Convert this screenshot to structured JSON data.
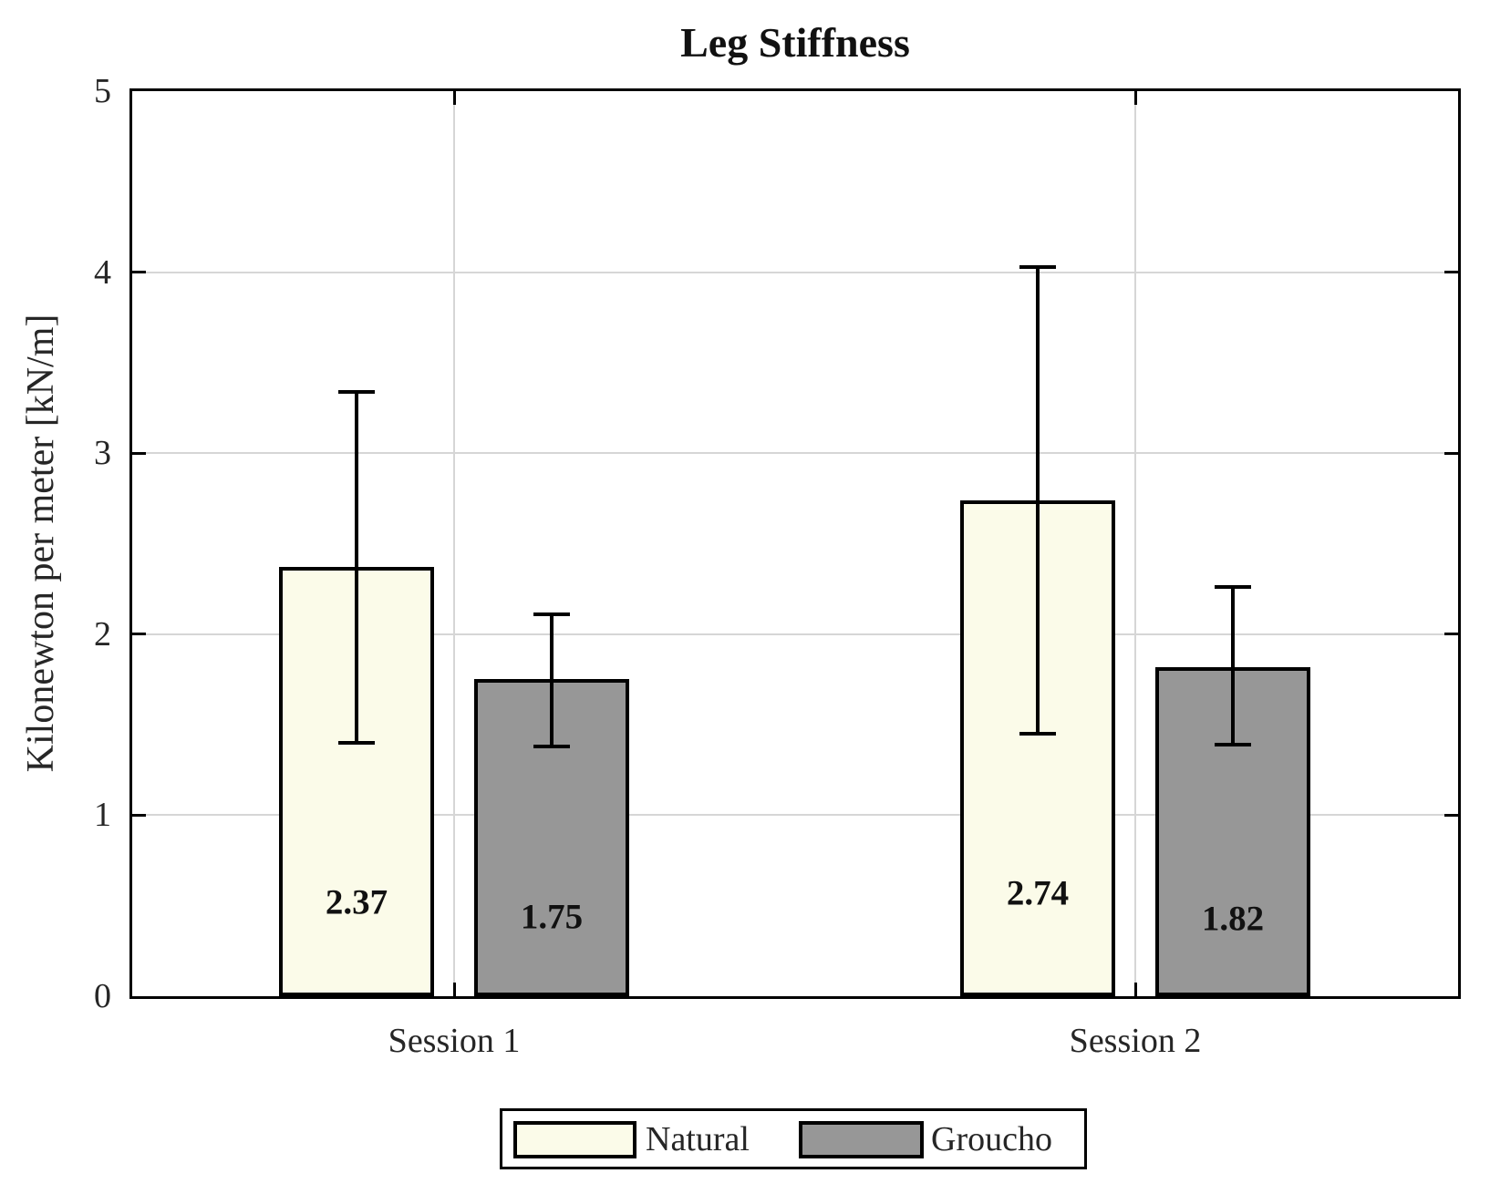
{
  "figure_title": "Leg Stiffness",
  "chart_data": {
    "type": "bar",
    "title": "Leg Stiffness",
    "xlabel": "",
    "ylabel": "Kilonewton per meter [kN/m]",
    "categories": [
      "Session 1",
      "Session 2"
    ],
    "series": [
      {
        "name": "Natural",
        "color": "#fbfbe9",
        "values": [
          2.37,
          2.74
        ],
        "err_low": [
          1.39,
          1.44
        ],
        "err_high": [
          3.35,
          4.04
        ],
        "value_labels": [
          "2.37",
          "2.74"
        ],
        "label_y": [
          0.52,
          0.57
        ]
      },
      {
        "name": "Groucho",
        "color": "#979797",
        "values": [
          1.75,
          1.82
        ],
        "err_low": [
          1.37,
          1.38
        ],
        "err_high": [
          2.12,
          2.27
        ],
        "value_labels": [
          "1.75",
          "1.82"
        ],
        "label_y": [
          0.44,
          0.43
        ]
      }
    ],
    "y_ticks": [
      "0",
      "1",
      "2",
      "3",
      "4",
      "5"
    ],
    "ylim": [
      0,
      5
    ],
    "grid": true,
    "legend_position": "below-center"
  },
  "colors": {
    "background": "#ffffff",
    "frame": "#000000",
    "grid": "#d6d6d6",
    "bar_border": "#000000",
    "error_bar": "#000000",
    "text": "#262626"
  }
}
